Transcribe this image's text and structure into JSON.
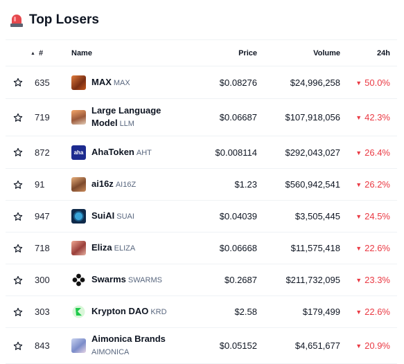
{
  "header": {
    "title": "Top Losers",
    "icon": "siren-icon"
  },
  "table": {
    "columns": {
      "rank": "#",
      "name": "Name",
      "price": "Price",
      "volume": "Volume",
      "change": "24h"
    },
    "rows": [
      {
        "rank": "635",
        "name": "MAX",
        "symbol": "MAX",
        "price": "$0.08276",
        "volume": "$24,996,258",
        "change": "50.0%"
      },
      {
        "rank": "719",
        "name": "Large Language Model",
        "name_line1": "Large Language",
        "name_line2": "Model",
        "symbol": "LLM",
        "price": "$0.06687",
        "volume": "$107,918,056",
        "change": "42.3%"
      },
      {
        "rank": "872",
        "name": "AhaToken",
        "symbol": "AHT",
        "logo_text": "aha",
        "price": "$0.008114",
        "volume": "$292,043,027",
        "change": "26.4%"
      },
      {
        "rank": "91",
        "name": "ai16z",
        "symbol": "AI16Z",
        "price": "$1.23",
        "volume": "$560,942,541",
        "change": "26.2%"
      },
      {
        "rank": "947",
        "name": "SuiAI",
        "symbol": "SUAI",
        "price": "$0.04039",
        "volume": "$3,505,445",
        "change": "24.5%"
      },
      {
        "rank": "718",
        "name": "Eliza",
        "symbol": "ELIZA",
        "price": "$0.06668",
        "volume": "$11,575,418",
        "change": "22.6%"
      },
      {
        "rank": "300",
        "name": "Swarms",
        "symbol": "SWARMS",
        "price": "$0.2687",
        "volume": "$211,732,095",
        "change": "23.3%"
      },
      {
        "rank": "303",
        "name": "Krypton DAO",
        "symbol": "KRD",
        "price": "$2.58",
        "volume": "$179,499",
        "change": "22.6%"
      },
      {
        "rank": "843",
        "name": "Aimonica Brands",
        "name_line1": "Aimonica Brands",
        "name_line2": "",
        "symbol": "AIMONICA",
        "price": "$0.05152",
        "volume": "$4,651,677",
        "change": "20.9%"
      }
    ]
  },
  "colors": {
    "negative": "#ea3943",
    "text": "#0d1421",
    "muted": "#58667e",
    "divider": "#eff2f5"
  }
}
